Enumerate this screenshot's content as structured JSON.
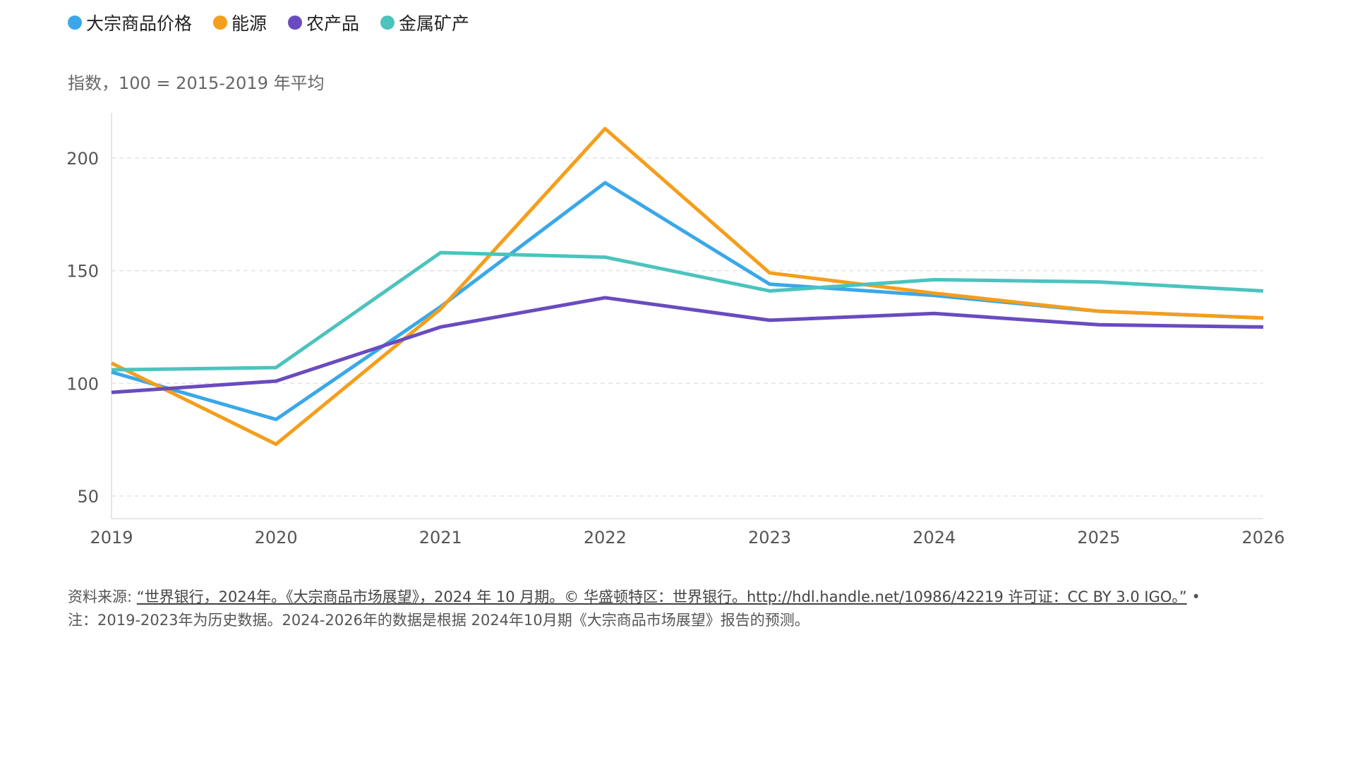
{
  "chart_data": {
    "type": "line",
    "ylabel": "指数，100 = 2015-2019 年平均",
    "x": [
      2019,
      2020,
      2021,
      2022,
      2023,
      2024,
      2025,
      2026
    ],
    "xlim": [
      2019,
      2026
    ],
    "ylim": [
      40,
      220
    ],
    "yticks": [
      50,
      100,
      150,
      200
    ],
    "grid": "horizontal dashed",
    "legend": "top-left",
    "series": [
      {
        "name": "大宗商品价格",
        "color": "#3aa8e8",
        "values": [
          105,
          84,
          134,
          189,
          144,
          139,
          132,
          129
        ]
      },
      {
        "name": "能源",
        "color": "#f59e1b",
        "values": [
          109,
          73,
          133,
          213,
          149,
          140,
          132,
          129
        ]
      },
      {
        "name": "农产品",
        "color": "#6a4bbf",
        "values": [
          96,
          101,
          125,
          138,
          128,
          131,
          126,
          125
        ]
      },
      {
        "name": "金属矿产",
        "color": "#4cc3bd",
        "values": [
          106,
          107,
          158,
          156,
          141,
          146,
          145,
          141
        ]
      }
    ]
  },
  "footer": {
    "source_prefix": "资料来源: ",
    "source_link": "“世界银行，2024年。《大宗商品市场展望》，2024 年 10 月期。© 华盛顿特区：世界银行。http://hdl.handle.net/10986/42219 许可证：CC BY 3.0 IGO。”",
    "bullet": " •",
    "note": "注：2019-2023年为历史数据。2024-2026年的数据是根据 2024年10月期《大宗商品市场展望》报告的预测。"
  }
}
